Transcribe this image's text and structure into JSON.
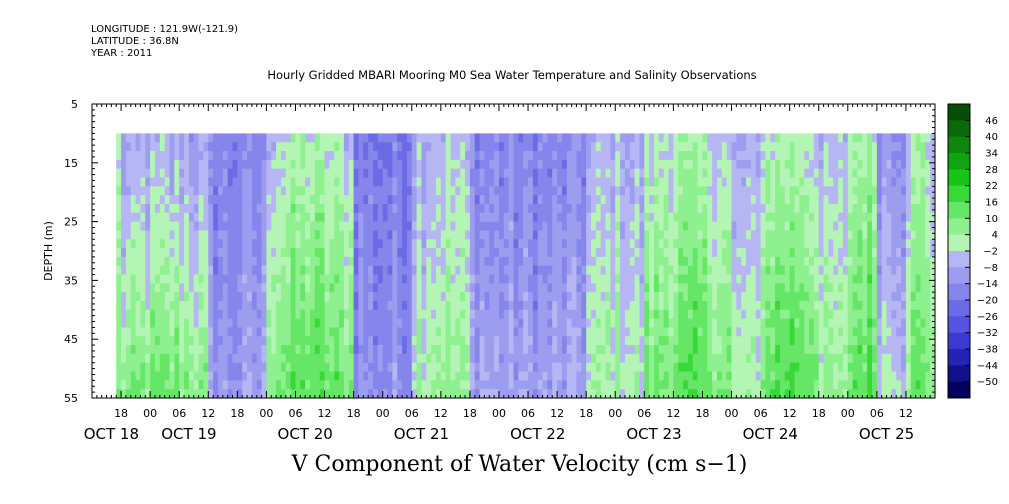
{
  "header": {
    "longitude": "LONGITUDE : 121.9W(-121.9)",
    "latitude": "LATITUDE : 36.8N",
    "year": "YEAR : 2011"
  },
  "chart_data": {
    "type": "heatmap",
    "title": "Hourly Gridded MBARI Mooring M0 Sea Water Temperature and Salinity Observations",
    "xlabel": "V Component of Water Velocity (cm s−1)",
    "ylabel": "DEPTH (m)",
    "y_range": [
      5,
      55
    ],
    "y_inverted": true,
    "y_ticks": [
      5,
      15,
      25,
      35,
      45,
      55
    ],
    "data_depth_range": [
      10,
      55
    ],
    "x_range_hours": "Oct 18 12:00 to Oct 25 18:00, 2011",
    "x_hour_ticks": [
      "18",
      "00",
      "06",
      "12",
      "18",
      "00",
      "06",
      "12",
      "18",
      "00",
      "06",
      "12",
      "18",
      "00",
      "06",
      "12",
      "18",
      "00",
      "06",
      "12",
      "18",
      "00",
      "06",
      "12",
      "18",
      "00",
      "06",
      "12"
    ],
    "x_day_labels": [
      "OCT 18",
      "OCT 19",
      "OCT 20",
      "OCT 21",
      "OCT 22",
      "OCT 23",
      "OCT 24",
      "OCT 25"
    ],
    "colorbar": {
      "levels": [
        -50,
        -44,
        -38,
        -32,
        -26,
        -20,
        -14,
        -8,
        -2,
        4,
        10,
        16,
        22,
        28,
        34,
        40,
        46
      ],
      "labels": [
        "46",
        "40",
        "34",
        "28",
        "22",
        "16",
        "10",
        "4",
        "−2",
        "−8",
        "−14",
        "−20",
        "−26",
        "−32",
        "−38",
        "−44",
        "−50"
      ],
      "negative_colors": [
        "#000060",
        "#10108a",
        "#2424b4",
        "#3b3bd2",
        "#5454e0",
        "#6b6be6",
        "#8585ec",
        "#9d9df0",
        "#b6b6f4"
      ],
      "positive_colors": [
        "#b4f4b4",
        "#8ef08e",
        "#66e666",
        "#38d838",
        "#18c418",
        "#10a410",
        "#0e860e",
        "#0a6a0a",
        "#064e06"
      ]
    },
    "field_pattern": {
      "description_values": "V velocity (cm/s) by time segment, approximate; positive = green, negative = blue",
      "segments": [
        {
          "start": "Oct 18 18",
          "end": "Oct 19 12",
          "surface": -6,
          "deep": 12
        },
        {
          "start": "Oct 19 12",
          "end": "Oct 20 00",
          "surface": -10,
          "deep": -4
        },
        {
          "start": "Oct 20 00",
          "end": "Oct 20 18",
          "surface": 2,
          "deep": 16
        },
        {
          "start": "Oct 20 18",
          "end": "Oct 21 06",
          "surface": -12,
          "deep": -6
        },
        {
          "start": "Oct 21 06",
          "end": "Oct 21 18",
          "surface": -2,
          "deep": 8
        },
        {
          "start": "Oct 21 18",
          "end": "Oct 22 18",
          "surface": -10,
          "deep": -2
        },
        {
          "start": "Oct 22 18",
          "end": "Oct 23 06",
          "surface": -4,
          "deep": 6
        },
        {
          "start": "Oct 23 06",
          "end": "Oct 24 00",
          "surface": 2,
          "deep": 16
        },
        {
          "start": "Oct 24 00",
          "end": "Oct 24 06",
          "surface": -6,
          "deep": 4
        },
        {
          "start": "Oct 24 06",
          "end": "Oct 24 18",
          "surface": 4,
          "deep": 20
        },
        {
          "start": "Oct 24 18",
          "end": "Oct 25 00",
          "surface": -4,
          "deep": 6
        },
        {
          "start": "Oct 25 00",
          "end": "Oct 25 06",
          "surface": 6,
          "deep": 18
        },
        {
          "start": "Oct 25 06",
          "end": "Oct 25 12",
          "surface": -8,
          "deep": 4
        },
        {
          "start": "Oct 25 12",
          "end": "Oct 25 18",
          "surface": 2,
          "deep": 14
        }
      ]
    }
  }
}
